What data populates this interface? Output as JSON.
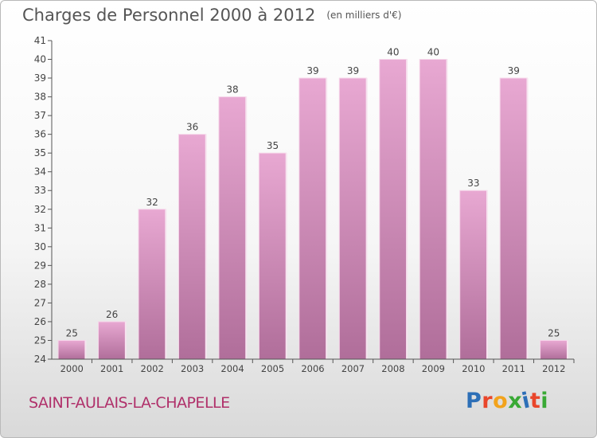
{
  "title": "Charges de Personnel 2000 à 2012",
  "unit_note": "(en milliers d'€)",
  "place": "SAINT-AULAIS-LA-CHAPELLE",
  "logo": {
    "text": "Proxiti",
    "letter_colors": [
      "#2d6fb7",
      "#e9462b",
      "#f2a31c",
      "#39a935",
      "#2d6fb7",
      "#e9462b",
      "#39a935"
    ]
  },
  "colors": {
    "bar_top": "#e8a8d2",
    "bar_bottom": "#b06e9a",
    "bar_edge": "#f6d6ea",
    "axis": "#555555",
    "grid": "#d8d8d8"
  },
  "chart_data": {
    "type": "bar",
    "title": "Charges de Personnel 2000 à 2012",
    "subtitle": "(en milliers d'€)",
    "categories": [
      "2000",
      "2001",
      "2002",
      "2003",
      "2004",
      "2005",
      "2006",
      "2007",
      "2008",
      "2009",
      "2010",
      "2011",
      "2012"
    ],
    "values": [
      25,
      26,
      32,
      36,
      38,
      35,
      39,
      39,
      40,
      40,
      33,
      39,
      25
    ],
    "ylim": [
      24,
      41
    ],
    "yticks": [
      24,
      25,
      26,
      27,
      28,
      29,
      30,
      31,
      32,
      33,
      34,
      35,
      36,
      37,
      38,
      39,
      40,
      41
    ],
    "grid": false,
    "data_labels": true
  }
}
